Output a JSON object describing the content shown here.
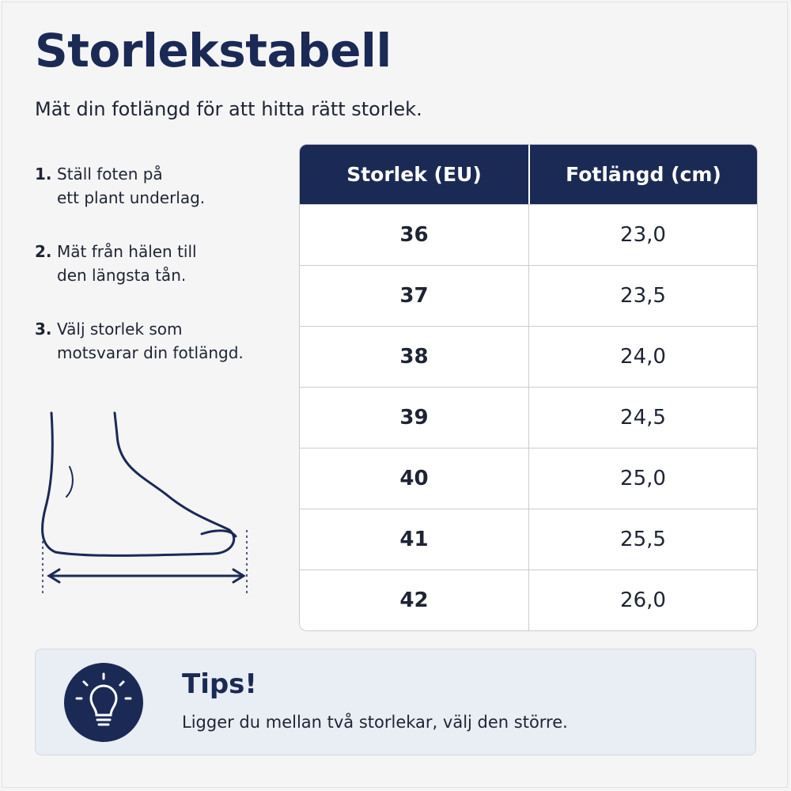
{
  "header": {
    "title": "Storlekstabell",
    "subtitle": "Mät din fotlängd för att hitta rätt storlek."
  },
  "steps": [
    {
      "number": "1.",
      "lines": [
        "Ställ foten på",
        "ett plant underlag."
      ]
    },
    {
      "number": "2.",
      "lines": [
        "Mät från hälen till",
        "den längsta tån."
      ]
    },
    {
      "number": "3.",
      "lines": [
        "Välj storlek som",
        "motsvarar din fotlängd."
      ]
    }
  ],
  "table": {
    "headers": [
      "Storlek (EU)",
      "Fotlängd (cm)"
    ],
    "rows": [
      [
        "36",
        "23,0"
      ],
      [
        "37",
        "23,5"
      ],
      [
        "38",
        "24,0"
      ],
      [
        "39",
        "24,5"
      ],
      [
        "40",
        "25,0"
      ],
      [
        "41",
        "25,5"
      ],
      [
        "42",
        "26,0"
      ]
    ]
  },
  "tips": {
    "title": "Tips!",
    "text": "Ligger du mellan två storlekar, välj den större."
  }
}
